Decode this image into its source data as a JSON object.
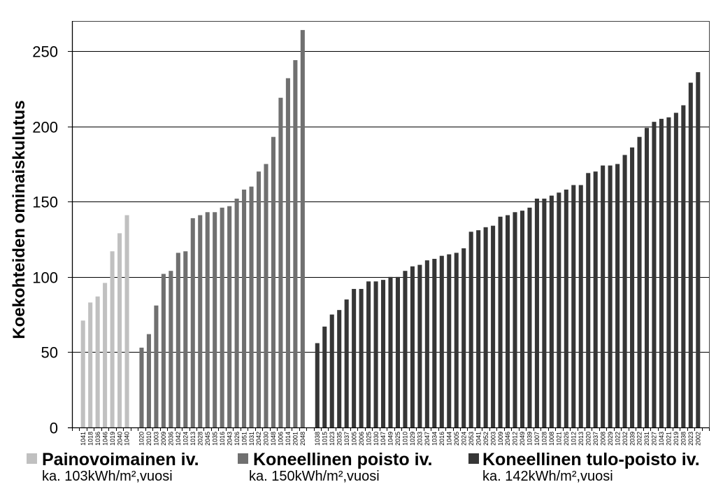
{
  "chart_data": {
    "type": "bar",
    "ylabel": "Koekohteiden ominaiskulutus",
    "ylim": [
      0,
      270
    ],
    "yticks": [
      0,
      50,
      100,
      150,
      200,
      250
    ],
    "grid": true,
    "legend_position": "bottom",
    "series": [
      {
        "name": "Painovoimainen iv.",
        "average_label": "ka. 103kWh/m²,vuosi",
        "color": "#c0c0c0",
        "categories": [
          "1041",
          "1018",
          "1036",
          "1046",
          "1019",
          "2040",
          "1040"
        ],
        "values": [
          71,
          83,
          87,
          96,
          117,
          129,
          141
        ]
      },
      {
        "name": "Koneellinen poisto iv.",
        "average_label": "ka. 150kWh/m²,vuosi",
        "color": "#707070",
        "categories": [
          "1020",
          "2010",
          "1003",
          "2009",
          "2036",
          "1042",
          "1024",
          "1013",
          "2028",
          "2045",
          "1035",
          "1016",
          "2043",
          "1026",
          "1051",
          "1031",
          "2042",
          "2030",
          "1048",
          "1006",
          "1014",
          "2001",
          "2048"
        ],
        "values": [
          53,
          62,
          81,
          102,
          104,
          116,
          117,
          139,
          141,
          143,
          143,
          146,
          147,
          152,
          158,
          160,
          170,
          175,
          193,
          219,
          232,
          244,
          264
        ]
      },
      {
        "name": "Koneellinen tulo-poisto iv.",
        "average_label": "ka. 142kWh/m²,vuosi",
        "color": "#363636",
        "categories": [
          "1038",
          "1015",
          "1023",
          "2035",
          "1037",
          "1005",
          "2006",
          "1025",
          "1030",
          "1047",
          "1049",
          "2025",
          "1010",
          "1029",
          "2033",
          "2047",
          "1034",
          "2016",
          "1044",
          "2005",
          "2024",
          "2053",
          "2041",
          "2052",
          "2003",
          "1009",
          "2046",
          "2012",
          "2049",
          "1039",
          "1007",
          "1028",
          "1008",
          "1021",
          "2026",
          "1012",
          "2013",
          "2020",
          "2037",
          "2008",
          "2029",
          "1022",
          "2032",
          "2039",
          "2022",
          "2031",
          "2027",
          "1043",
          "2021",
          "2019",
          "2038",
          "2023",
          "2002"
        ],
        "values": [
          56,
          67,
          75,
          78,
          85,
          92,
          92,
          97,
          97,
          98,
          100,
          100,
          104,
          107,
          108,
          111,
          112,
          114,
          115,
          116,
          119,
          130,
          131,
          133,
          134,
          140,
          141,
          143,
          144,
          146,
          152,
          152,
          154,
          156,
          158,
          161,
          161,
          169,
          170,
          174,
          174,
          175,
          181,
          186,
          193,
          199,
          203,
          205,
          206,
          209,
          214,
          229,
          236
        ]
      }
    ]
  }
}
